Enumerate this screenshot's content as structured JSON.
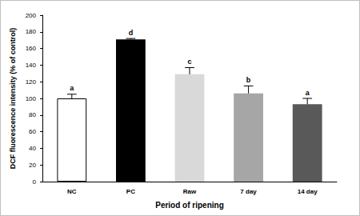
{
  "chart_data": {
    "type": "bar",
    "x_label": "Period of ripening",
    "y_label": "DCF fluorescence intensity (% of control)",
    "categories": [
      "NC",
      "PC",
      "Raw",
      "7 day",
      "14 day"
    ],
    "values": [
      100,
      171,
      129,
      106,
      93
    ],
    "errors": [
      5,
      1,
      8,
      9,
      7
    ],
    "annotations": [
      "a",
      "d",
      "c",
      "b",
      "a"
    ],
    "colors": [
      "#ffffff",
      "#000000",
      "#d9d9d9",
      "#a6a6a6",
      "#595959"
    ],
    "ylim": [
      0,
      200
    ],
    "yticks": [
      0,
      20,
      40,
      60,
      80,
      100,
      120,
      140,
      160,
      180,
      200
    ],
    "grid": false
  }
}
